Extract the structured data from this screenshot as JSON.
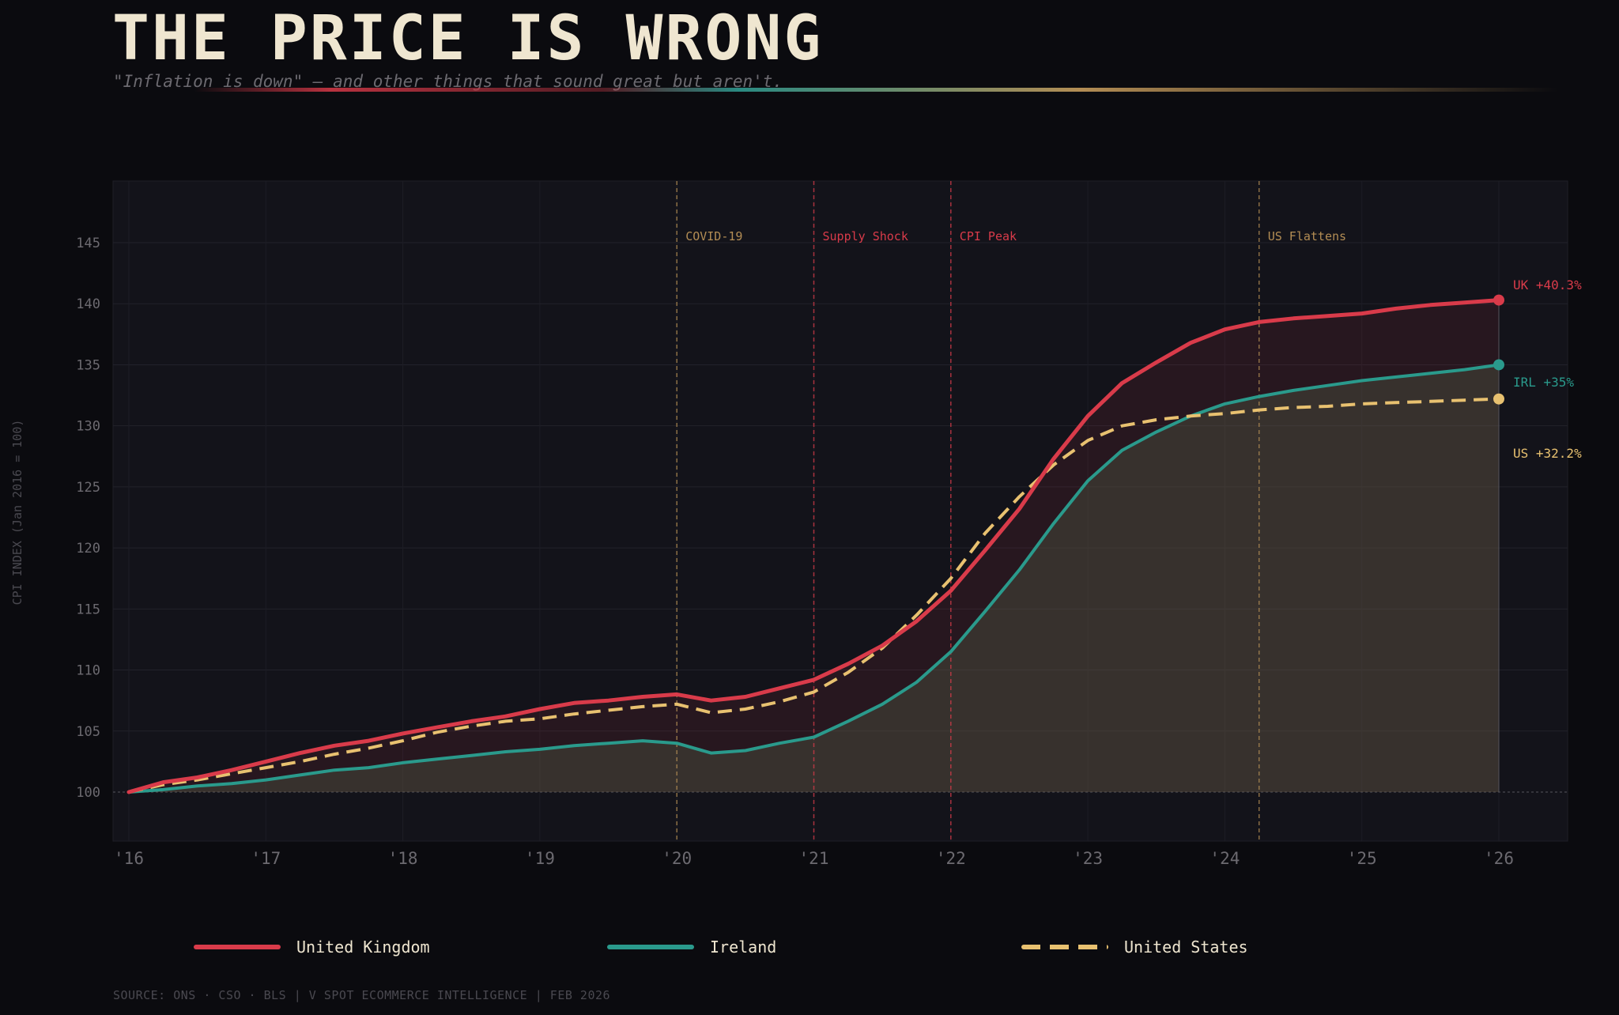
{
  "header": {
    "title": "THE PRICE IS WRONG",
    "subtitle": "\"Inflation is down\" — and other things that sound great but aren't."
  },
  "footer": {
    "source": "SOURCE: ONS · CSO · BLS  |  V SPOT ECOMMERCE INTELLIGENCE  |  FEB 2026"
  },
  "colors": {
    "background": "#0b0b0f",
    "panel": "#13131a",
    "uk": "#d93b4a",
    "ireland": "#2a9a8c",
    "us": "#e8c170",
    "text": "#efe6d0",
    "muted": "#6c6a70"
  },
  "chart_data": {
    "type": "line",
    "title": "THE PRICE IS WRONG",
    "ylabel": "CPI INDEX  (Jan 2016 = 100)",
    "xlabel": "",
    "xlim": [
      2015.88,
      2026.5
    ],
    "ylim": [
      96,
      150
    ],
    "grid": true,
    "legend_position": "bottom",
    "xticks": [
      2016,
      2017,
      2018,
      2019,
      2020,
      2021,
      2022,
      2023,
      2024,
      2025,
      2026
    ],
    "xtick_labels": [
      "'16",
      "'17",
      "'18",
      "'19",
      "'20",
      "'21",
      "'22",
      "'23",
      "'24",
      "'25",
      "'26"
    ],
    "yticks": [
      100,
      105,
      110,
      115,
      120,
      125,
      130,
      135,
      140,
      145
    ],
    "ytick_labels": [
      "100",
      "105",
      "110",
      "115",
      "120",
      "125",
      "130",
      "135",
      "140",
      "145"
    ],
    "x": [
      2016,
      2016.25,
      2016.5,
      2016.75,
      2017,
      2017.25,
      2017.5,
      2017.75,
      2018,
      2018.25,
      2018.5,
      2018.75,
      2019,
      2019.25,
      2019.5,
      2019.75,
      2020,
      2020.25,
      2020.5,
      2020.75,
      2021,
      2021.25,
      2021.5,
      2021.75,
      2022,
      2022.25,
      2022.5,
      2022.75,
      2023,
      2023.25,
      2023.5,
      2023.75,
      2024,
      2024.25,
      2024.5,
      2024.75,
      2025,
      2025.25,
      2025.5,
      2025.75,
      2026
    ],
    "series": [
      {
        "name": "United Kingdom",
        "key": "uk",
        "color": "#d93b4a",
        "style": "solid",
        "end_label": "UK +40.3%",
        "values": [
          100,
          100.8,
          101.2,
          101.8,
          102.5,
          103.2,
          103.8,
          104.2,
          104.8,
          105.3,
          105.8,
          106.2,
          106.8,
          107.3,
          107.5,
          107.8,
          108.0,
          107.5,
          107.8,
          108.5,
          109.2,
          110.5,
          112.0,
          114.0,
          116.5,
          119.8,
          123.2,
          127.3,
          130.8,
          133.5,
          135.2,
          136.8,
          137.9,
          138.5,
          138.8,
          139.0,
          139.2,
          139.6,
          139.9,
          140.1,
          140.3
        ]
      },
      {
        "name": "Ireland",
        "key": "ireland",
        "color": "#2a9a8c",
        "style": "solid",
        "end_label": "IRL +35%",
        "values": [
          100,
          100.2,
          100.5,
          100.7,
          101.0,
          101.4,
          101.8,
          102.0,
          102.4,
          102.7,
          103.0,
          103.3,
          103.5,
          103.8,
          104.0,
          104.2,
          104.0,
          103.2,
          103.4,
          104.0,
          104.5,
          105.8,
          107.2,
          109.0,
          111.5,
          114.8,
          118.2,
          122.0,
          125.5,
          128.0,
          129.5,
          130.8,
          131.8,
          132.4,
          132.9,
          133.3,
          133.7,
          134.0,
          134.3,
          134.6,
          135.0
        ]
      },
      {
        "name": "United States",
        "key": "us",
        "color": "#e8c170",
        "style": "dashed",
        "end_label": "US +32.2%",
        "values": [
          100,
          100.6,
          101.0,
          101.5,
          102.0,
          102.5,
          103.1,
          103.6,
          104.2,
          104.9,
          105.4,
          105.8,
          106.0,
          106.4,
          106.7,
          107.0,
          107.2,
          106.5,
          106.8,
          107.4,
          108.2,
          109.8,
          111.8,
          114.5,
          117.5,
          121.2,
          124.2,
          126.8,
          128.8,
          130.0,
          130.5,
          130.8,
          131.0,
          131.3,
          131.5,
          131.6,
          131.8,
          131.9,
          132.0,
          132.1,
          132.2
        ]
      }
    ],
    "annotations": [
      {
        "x": 2020,
        "label": "COVID-19",
        "color": "#b38d54"
      },
      {
        "x": 2021,
        "label": "Supply Shock",
        "color": "#d93b4a"
      },
      {
        "x": 2022,
        "label": "CPI Peak",
        "color": "#d93b4a"
      },
      {
        "x": 2024.25,
        "label": "US Flattens",
        "color": "#b38d54"
      }
    ],
    "baseline": 100
  }
}
